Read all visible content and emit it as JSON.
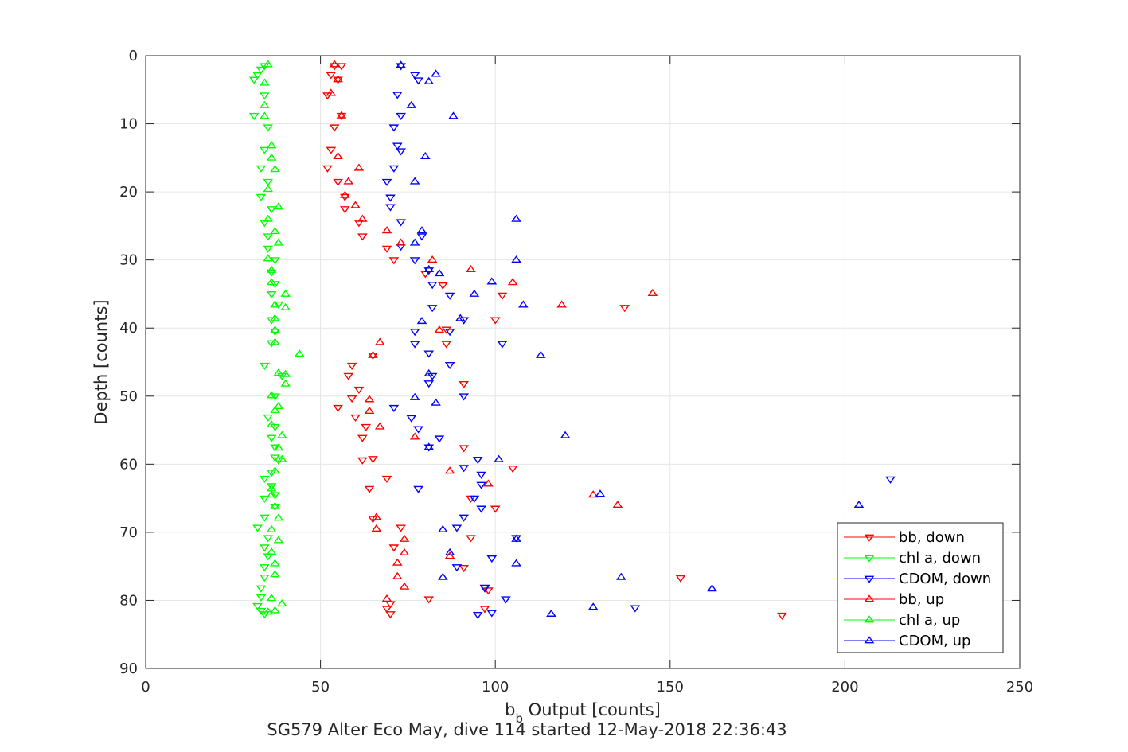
{
  "chart_data": {
    "type": "scatter",
    "xlabel_main": "b",
    "xlabel_sub": "b",
    "xlabel_rest": " Output [counts]",
    "ylabel": "Depth [counts]",
    "caption": "SG579 Alter Eco May, dive 114 started 12-May-2018 22:36:43",
    "xlim": [
      0,
      250
    ],
    "ylim": [
      0,
      90
    ],
    "y_reversed": true,
    "grid": true,
    "legend_position": "bottom-right",
    "x_ticks": [
      0,
      50,
      100,
      150,
      200,
      250
    ],
    "y_ticks": [
      0,
      10,
      20,
      30,
      40,
      50,
      60,
      70,
      80,
      90
    ],
    "series": [
      {
        "name": "bb, down",
        "color": "#ff0000",
        "marker": "triangle-down",
        "points": [
          [
            54,
            1.5
          ],
          [
            56,
            1.5
          ],
          [
            53,
            2.8
          ],
          [
            55,
            3.5
          ],
          [
            52,
            5.8
          ],
          [
            56,
            8.8
          ],
          [
            54,
            10.5
          ],
          [
            53,
            13.8
          ],
          [
            52,
            16.5
          ],
          [
            55,
            18.5
          ],
          [
            57,
            20.7
          ],
          [
            57,
            22.5
          ],
          [
            61,
            24.5
          ],
          [
            62,
            26.5
          ],
          [
            69,
            28.3
          ],
          [
            71,
            30
          ],
          [
            80,
            32
          ],
          [
            85,
            33.7
          ],
          [
            102,
            35.2
          ],
          [
            137,
            37
          ],
          [
            91,
            38.8
          ],
          [
            100,
            38.8
          ],
          [
            86,
            40.2
          ],
          [
            86,
            42.3
          ],
          [
            65,
            44
          ],
          [
            59,
            45.5
          ],
          [
            58,
            47
          ],
          [
            91,
            48.2
          ],
          [
            61,
            49
          ],
          [
            59,
            50.3
          ],
          [
            55,
            51.7
          ],
          [
            60,
            53.1
          ],
          [
            63,
            54.5
          ],
          [
            62,
            56.1
          ],
          [
            91,
            57.6
          ],
          [
            65,
            59.2
          ],
          [
            62,
            59.4
          ],
          [
            105,
            60.6
          ],
          [
            69,
            62.1
          ],
          [
            64,
            63.6
          ],
          [
            93,
            65
          ],
          [
            100,
            66.5
          ],
          [
            65,
            68
          ],
          [
            73,
            69.3
          ],
          [
            93,
            70.8
          ],
          [
            71,
            72.2
          ],
          [
            91,
            75.2
          ],
          [
            98,
            78.5
          ],
          [
            153,
            76.7
          ],
          [
            81,
            79.8
          ],
          [
            70,
            80.5
          ],
          [
            69,
            81.2
          ],
          [
            70,
            82
          ],
          [
            97,
            81.2
          ],
          [
            182,
            82.2
          ]
        ]
      },
      {
        "name": "chl a, down",
        "color": "#00ff00",
        "marker": "triangle-down",
        "points": [
          [
            34,
            1.5
          ],
          [
            33,
            2
          ],
          [
            32,
            2.8
          ],
          [
            31,
            3.5
          ],
          [
            34,
            5.8
          ],
          [
            31,
            8.8
          ],
          [
            35,
            10.5
          ],
          [
            34,
            13.8
          ],
          [
            33,
            16.5
          ],
          [
            35,
            18.5
          ],
          [
            33,
            20.7
          ],
          [
            36,
            22.5
          ],
          [
            34,
            24.5
          ],
          [
            35,
            26.5
          ],
          [
            35,
            28.3
          ],
          [
            37,
            30
          ],
          [
            36,
            31.8
          ],
          [
            37,
            33.5
          ],
          [
            36,
            35
          ],
          [
            38,
            36.5
          ],
          [
            36,
            38.8
          ],
          [
            37,
            40.5
          ],
          [
            36,
            42.2
          ],
          [
            34,
            45.5
          ],
          [
            39,
            47
          ],
          [
            37,
            50
          ],
          [
            35,
            53.1
          ],
          [
            37,
            54.5
          ],
          [
            36,
            56.1
          ],
          [
            37,
            57.5
          ],
          [
            37,
            59
          ],
          [
            38,
            59.4
          ],
          [
            36,
            61.2
          ],
          [
            34,
            62.1
          ],
          [
            36,
            63.2
          ],
          [
            37,
            64.5
          ],
          [
            34,
            65
          ],
          [
            37,
            66.2
          ],
          [
            34,
            67.8
          ],
          [
            32,
            69.3
          ],
          [
            35,
            70.8
          ],
          [
            34,
            72.2
          ],
          [
            35,
            73.5
          ],
          [
            34,
            75.1
          ],
          [
            34,
            76.6
          ],
          [
            33,
            78.2
          ],
          [
            33,
            79.5
          ],
          [
            32,
            80.8
          ],
          [
            33,
            81.5
          ],
          [
            34,
            82
          ]
        ]
      },
      {
        "name": "CDOM, down",
        "color": "#0000ff",
        "marker": "triangle-down",
        "points": [
          [
            73,
            1.5
          ],
          [
            77,
            2.8
          ],
          [
            78,
            3.6
          ],
          [
            72,
            5.7
          ],
          [
            73,
            8.8
          ],
          [
            71,
            10.5
          ],
          [
            72,
            13.2
          ],
          [
            73,
            14
          ],
          [
            71,
            16.5
          ],
          [
            69,
            18.5
          ],
          [
            70,
            20.8
          ],
          [
            70,
            22.2
          ],
          [
            73,
            24.4
          ],
          [
            79,
            26.5
          ],
          [
            73,
            28
          ],
          [
            77,
            30
          ],
          [
            81,
            31.5
          ],
          [
            82,
            33.6
          ],
          [
            87,
            35.2
          ],
          [
            82,
            37
          ],
          [
            91,
            38.8
          ],
          [
            77,
            40.5
          ],
          [
            87,
            40.5
          ],
          [
            102,
            42.3
          ],
          [
            77,
            42.3
          ],
          [
            81,
            43.7
          ],
          [
            87,
            45.4
          ],
          [
            82,
            47
          ],
          [
            81,
            48.1
          ],
          [
            91,
            50
          ],
          [
            71,
            51.7
          ],
          [
            76,
            53.2
          ],
          [
            78,
            54.8
          ],
          [
            84,
            56.2
          ],
          [
            81,
            57.5
          ],
          [
            95,
            59.3
          ],
          [
            91,
            60.5
          ],
          [
            96,
            61.5
          ],
          [
            96,
            63
          ],
          [
            78,
            63.6
          ],
          [
            94,
            65
          ],
          [
            96,
            66.5
          ],
          [
            91,
            67.8
          ],
          [
            89,
            69.3
          ],
          [
            106,
            70.8
          ],
          [
            99,
            73.8
          ],
          [
            89,
            75.1
          ],
          [
            97,
            78.1
          ],
          [
            97,
            78.2
          ],
          [
            103,
            79.8
          ],
          [
            99,
            81.8
          ],
          [
            95,
            82.1
          ],
          [
            140,
            81.1
          ],
          [
            213,
            62.2
          ]
        ]
      },
      {
        "name": "bb, up",
        "color": "#ff0000",
        "marker": "triangle-up",
        "points": [
          [
            54,
            1.3
          ],
          [
            55,
            3.5
          ],
          [
            53,
            5.5
          ],
          [
            56,
            8.8
          ],
          [
            55,
            14.8
          ],
          [
            61,
            16.5
          ],
          [
            58,
            18.5
          ],
          [
            57,
            20.5
          ],
          [
            60,
            22
          ],
          [
            62,
            24
          ],
          [
            69,
            25.7
          ],
          [
            73,
            27.5
          ],
          [
            82,
            30
          ],
          [
            93,
            31.4
          ],
          [
            105,
            33.3
          ],
          [
            119,
            36.6
          ],
          [
            145,
            34.9
          ],
          [
            84,
            40.3
          ],
          [
            67,
            42.1
          ],
          [
            65,
            44
          ],
          [
            64,
            50.5
          ],
          [
            64,
            52.2
          ],
          [
            67,
            54.5
          ],
          [
            77,
            56
          ],
          [
            87,
            61
          ],
          [
            98,
            62.9
          ],
          [
            128,
            64.5
          ],
          [
            135,
            66
          ],
          [
            66,
            67.8
          ],
          [
            66,
            69.5
          ],
          [
            74,
            71
          ],
          [
            74,
            73
          ],
          [
            72,
            74.5
          ],
          [
            72,
            76.5
          ],
          [
            74,
            78
          ],
          [
            87,
            73.5
          ],
          [
            69,
            79.8
          ]
        ]
      },
      {
        "name": "chl a, up",
        "color": "#00ff00",
        "marker": "triangle-up",
        "points": [
          [
            35,
            1.3
          ],
          [
            34,
            4
          ],
          [
            34,
            7.3
          ],
          [
            34,
            8.9
          ],
          [
            36,
            13.2
          ],
          [
            36,
            15
          ],
          [
            37,
            16.7
          ],
          [
            35,
            19.6
          ],
          [
            38,
            22.2
          ],
          [
            35,
            24
          ],
          [
            37,
            25.8
          ],
          [
            38,
            27.5
          ],
          [
            35,
            29.8
          ],
          [
            36,
            31.5
          ],
          [
            36,
            33.3
          ],
          [
            40,
            35
          ],
          [
            37,
            36.6
          ],
          [
            40,
            37
          ],
          [
            37,
            38.6
          ],
          [
            37,
            40.3
          ],
          [
            37,
            42.1
          ],
          [
            44,
            43.8
          ],
          [
            38,
            46.6
          ],
          [
            40,
            46.8
          ],
          [
            40,
            48.2
          ],
          [
            36,
            49.9
          ],
          [
            38,
            51.5
          ],
          [
            37,
            52.1
          ],
          [
            36,
            54.2
          ],
          [
            39,
            55.8
          ],
          [
            38,
            57.6
          ],
          [
            39,
            59.3
          ],
          [
            37,
            61
          ],
          [
            36,
            63.6
          ],
          [
            36,
            64.5
          ],
          [
            37,
            66.2
          ],
          [
            38,
            67.9
          ],
          [
            36,
            69.6
          ],
          [
            38,
            71.2
          ],
          [
            36,
            72.9
          ],
          [
            37,
            74.6
          ],
          [
            37,
            76.2
          ],
          [
            36,
            79.7
          ],
          [
            39,
            80.5
          ],
          [
            37,
            81.5
          ],
          [
            35,
            81.7
          ]
        ]
      },
      {
        "name": "CDOM, up",
        "color": "#0000ff",
        "marker": "triangle-up",
        "points": [
          [
            73,
            1.4
          ],
          [
            83,
            2.7
          ],
          [
            81,
            3.8
          ],
          [
            88,
            8.9
          ],
          [
            76,
            7.3
          ],
          [
            80,
            14.8
          ],
          [
            77,
            18.5
          ],
          [
            106,
            24
          ],
          [
            79,
            25.7
          ],
          [
            77,
            27.5
          ],
          [
            106,
            30
          ],
          [
            81,
            31.4
          ],
          [
            84,
            32
          ],
          [
            99,
            33.2
          ],
          [
            94,
            35
          ],
          [
            108,
            36.6
          ],
          [
            90,
            38.6
          ],
          [
            79,
            39
          ],
          [
            113,
            44
          ],
          [
            81,
            46.7
          ],
          [
            77,
            50.2
          ],
          [
            83,
            51
          ],
          [
            120,
            55.8
          ],
          [
            81,
            57.5
          ],
          [
            101,
            59.3
          ],
          [
            130,
            64.4
          ],
          [
            204,
            66
          ],
          [
            85,
            69.6
          ],
          [
            106,
            71
          ],
          [
            87,
            73
          ],
          [
            106,
            74.6
          ],
          [
            85,
            76.6
          ],
          [
            136,
            76.6
          ],
          [
            162,
            78.3
          ],
          [
            128,
            81
          ],
          [
            116,
            82
          ]
        ]
      }
    ]
  }
}
